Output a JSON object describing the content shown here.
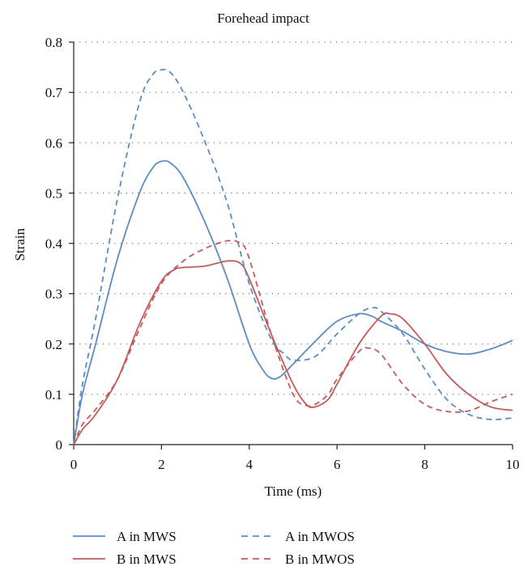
{
  "chart_data": {
    "type": "line",
    "title": "Forehead impact",
    "xlabel": "Time (ms)",
    "ylabel": "Strain",
    "xlim": [
      0,
      10
    ],
    "ylim": [
      0,
      0.8
    ],
    "xticks": [
      "0",
      "2",
      "4",
      "6",
      "8",
      "10"
    ],
    "yticks": [
      "0",
      "0.1",
      "0.2",
      "0.3",
      "0.4",
      "0.5",
      "0.6",
      "0.7",
      "0.8"
    ],
    "grid": "horizontal dotted",
    "legend_position": "bottom",
    "series": [
      {
        "name": "A in MWS",
        "color": "#5b8cc4",
        "dash": "solid",
        "x": [
          0,
          0.2,
          0.5,
          1.0,
          1.5,
          1.8,
          2.0,
          2.2,
          2.5,
          3.0,
          3.5,
          4.0,
          4.3,
          4.5,
          4.7,
          5.0,
          5.5,
          6.0,
          6.5,
          6.8,
          7.0,
          7.5,
          8.0,
          8.5,
          9.0,
          9.5,
          10.0
        ],
        "y": [
          0,
          0.1,
          0.2,
          0.37,
          0.5,
          0.55,
          0.563,
          0.56,
          0.53,
          0.44,
          0.33,
          0.2,
          0.15,
          0.132,
          0.135,
          0.16,
          0.205,
          0.245,
          0.26,
          0.255,
          0.245,
          0.225,
          0.2,
          0.185,
          0.18,
          0.19,
          0.207
        ]
      },
      {
        "name": "B in MWS",
        "color": "#c55a5a",
        "dash": "solid",
        "x": [
          0,
          0.2,
          0.5,
          1.0,
          1.5,
          2.0,
          2.3,
          2.5,
          3.0,
          3.5,
          3.8,
          4.0,
          4.5,
          5.0,
          5.3,
          5.5,
          5.8,
          6.0,
          6.5,
          7.0,
          7.2,
          7.5,
          8.0,
          8.5,
          9.0,
          9.5,
          10.0
        ],
        "y": [
          0,
          0.03,
          0.06,
          0.13,
          0.24,
          0.325,
          0.348,
          0.352,
          0.355,
          0.365,
          0.36,
          0.33,
          0.22,
          0.12,
          0.08,
          0.075,
          0.09,
          0.12,
          0.2,
          0.255,
          0.26,
          0.25,
          0.2,
          0.14,
          0.1,
          0.075,
          0.068
        ]
      },
      {
        "name": "A in MWOS",
        "color": "#5b8cc4",
        "dash": "dashed",
        "x": [
          0,
          0.2,
          0.5,
          1.0,
          1.5,
          1.8,
          2.0,
          2.2,
          2.5,
          3.0,
          3.5,
          4.0,
          4.5,
          4.8,
          5.0,
          5.5,
          6.0,
          6.5,
          6.8,
          7.0,
          7.5,
          8.0,
          8.5,
          9.0,
          9.5,
          10.0
        ],
        "y": [
          0,
          0.12,
          0.25,
          0.49,
          0.68,
          0.735,
          0.745,
          0.74,
          0.7,
          0.6,
          0.48,
          0.32,
          0.21,
          0.18,
          0.168,
          0.175,
          0.22,
          0.26,
          0.272,
          0.265,
          0.22,
          0.15,
          0.09,
          0.06,
          0.05,
          0.053
        ]
      },
      {
        "name": "B in MWOS",
        "color": "#c55a5a",
        "dash": "dashed",
        "x": [
          0,
          0.2,
          0.5,
          1.0,
          1.5,
          2.0,
          2.5,
          3.0,
          3.5,
          3.8,
          4.0,
          4.5,
          5.0,
          5.3,
          5.5,
          5.8,
          6.0,
          6.5,
          6.7,
          7.0,
          7.5,
          8.0,
          8.5,
          9.0,
          9.5,
          10.0
        ],
        "y": [
          0,
          0.04,
          0.07,
          0.13,
          0.23,
          0.32,
          0.365,
          0.39,
          0.405,
          0.4,
          0.37,
          0.22,
          0.1,
          0.078,
          0.08,
          0.1,
          0.13,
          0.185,
          0.192,
          0.18,
          0.12,
          0.08,
          0.066,
          0.067,
          0.085,
          0.1
        ]
      }
    ]
  }
}
